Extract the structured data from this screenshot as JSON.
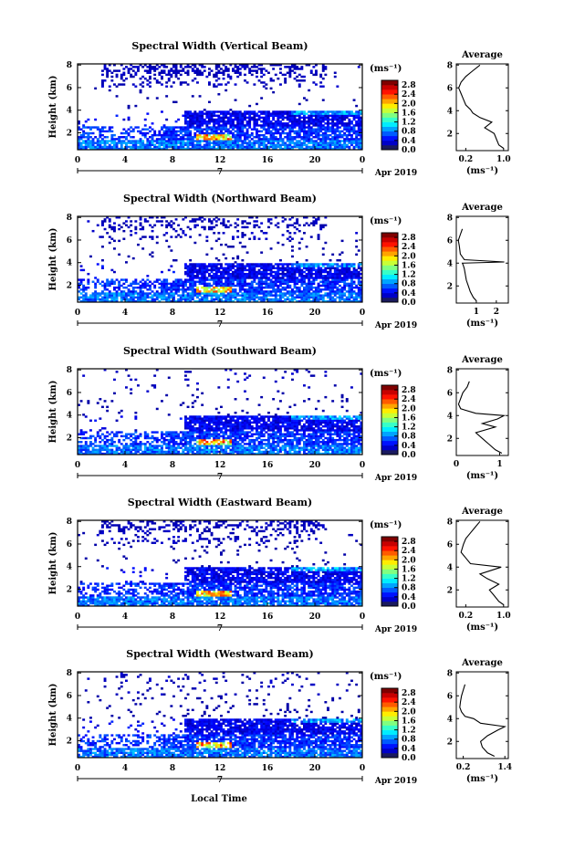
{
  "figure": {
    "xlabel": "Local Time",
    "date_label": "Apr 2019",
    "day_label": "7",
    "colorbar_unit": "(ms⁻¹)",
    "avg_xlabel": "(ms⁻¹)",
    "avg_title": "Average",
    "ylabel": "Height (km)"
  },
  "chart_data": [
    {
      "type": "heatmap",
      "title": "Spectral Width (Vertical Beam)",
      "xlabel": "Local Time",
      "ylabel": "Height (km)",
      "x_ticks": [
        "0",
        "4",
        "8",
        "12",
        "16",
        "20",
        "0"
      ],
      "y_ticks": [
        "2",
        "4",
        "6",
        "8"
      ],
      "ylim": [
        0.5,
        8.1
      ],
      "xlim": [
        0,
        24
      ],
      "colorbar_ticks": [
        "0.0",
        "0.4",
        "0.8",
        "1.2",
        "1.6",
        "2.0",
        "2.4",
        "2.8"
      ],
      "colorbar_range": [
        0.0,
        3.0
      ],
      "average_profile": {
        "title": "Average",
        "x_ticks": [
          "0.2",
          "1.0"
        ],
        "xlim": [
          0.0,
          1.1
        ],
        "heights": [
          0.7,
          1.0,
          1.5,
          2.0,
          2.5,
          3.0,
          3.4,
          3.8,
          4.1,
          4.5,
          5.0,
          5.5,
          6.0,
          6.5,
          7.0,
          7.5,
          8.0
        ],
        "values": [
          1.0,
          0.9,
          0.85,
          0.8,
          0.6,
          0.75,
          0.5,
          0.35,
          0.3,
          0.2,
          0.15,
          0.1,
          0.05,
          0.1,
          0.2,
          0.35,
          0.5
        ]
      }
    },
    {
      "type": "heatmap",
      "title": "Spectral Width (Northward Beam)",
      "xlabel": "Local Time",
      "ylabel": "Height (km)",
      "x_ticks": [
        "0",
        "4",
        "8",
        "12",
        "16",
        "20",
        "0"
      ],
      "y_ticks": [
        "2",
        "4",
        "6",
        "8"
      ],
      "ylim": [
        0.5,
        8.1
      ],
      "xlim": [
        0,
        24
      ],
      "colorbar_ticks": [
        "0.0",
        "0.4",
        "0.8",
        "1.2",
        "1.6",
        "2.0",
        "2.4",
        "2.8"
      ],
      "colorbar_range": [
        0.0,
        3.0
      ],
      "average_profile": {
        "title": "Average",
        "x_ticks": [
          "1",
          "2"
        ],
        "xlim": [
          0.0,
          2.6
        ],
        "heights": [
          0.7,
          1.0,
          1.5,
          2.0,
          2.5,
          3.0,
          3.5,
          3.8,
          4.0,
          4.1,
          4.3,
          4.8,
          5.5,
          6.0,
          6.5,
          7.0
        ],
        "values": [
          1.0,
          0.85,
          0.7,
          0.6,
          0.5,
          0.45,
          0.4,
          0.35,
          0.3,
          2.4,
          0.4,
          0.2,
          0.15,
          0.1,
          0.2,
          0.3
        ]
      }
    },
    {
      "type": "heatmap",
      "title": "Spectral Width (Southward Beam)",
      "xlabel": "Local Time",
      "ylabel": "Height (km)",
      "x_ticks": [
        "0",
        "4",
        "8",
        "12",
        "16",
        "20",
        "0"
      ],
      "y_ticks": [
        "2",
        "4",
        "6",
        "8"
      ],
      "ylim": [
        0.5,
        8.1
      ],
      "xlim": [
        0,
        24
      ],
      "colorbar_ticks": [
        "0.0",
        "0.4",
        "0.8",
        "1.2",
        "1.6",
        "2.0",
        "2.4",
        "2.8"
      ],
      "colorbar_range": [
        0.0,
        3.0
      ],
      "average_profile": {
        "title": "Average",
        "x_ticks": [
          "0",
          "1"
        ],
        "xlim": [
          0.0,
          1.2
        ],
        "heights": [
          0.7,
          1.0,
          1.5,
          2.0,
          2.5,
          3.0,
          3.3,
          3.7,
          4.0,
          4.2,
          4.6,
          5.0,
          5.5,
          6.0,
          6.5,
          7.0
        ],
        "values": [
          1.05,
          0.9,
          0.75,
          0.6,
          0.45,
          0.9,
          0.6,
          0.95,
          1.1,
          0.45,
          0.1,
          0.05,
          0.1,
          0.15,
          0.25,
          0.3
        ]
      }
    },
    {
      "type": "heatmap",
      "title": "Spectral Width (Eastward Beam)",
      "xlabel": "Local Time",
      "ylabel": "Height (km)",
      "x_ticks": [
        "0",
        "4",
        "8",
        "12",
        "16",
        "20",
        "0"
      ],
      "y_ticks": [
        "2",
        "4",
        "6",
        "8"
      ],
      "ylim": [
        0.5,
        8.1
      ],
      "xlim": [
        0,
        24
      ],
      "colorbar_ticks": [
        "0.0",
        "0.4",
        "0.8",
        "1.2",
        "1.6",
        "2.0",
        "2.4",
        "2.8"
      ],
      "colorbar_range": [
        0.0,
        3.0
      ],
      "average_profile": {
        "title": "Average",
        "x_ticks": [
          "0.2",
          "1.0"
        ],
        "xlim": [
          0.0,
          1.1
        ],
        "heights": [
          0.7,
          1.0,
          1.5,
          2.0,
          2.5,
          3.0,
          3.4,
          3.8,
          4.0,
          4.3,
          4.8,
          5.3,
          6.0,
          6.5,
          7.0,
          7.5,
          8.0
        ],
        "values": [
          1.0,
          0.9,
          0.8,
          0.7,
          0.9,
          0.65,
          0.5,
          0.8,
          0.95,
          0.3,
          0.2,
          0.1,
          0.15,
          0.2,
          0.3,
          0.4,
          0.5
        ]
      }
    },
    {
      "type": "heatmap",
      "title": "Spectral Width (Westward Beam)",
      "xlabel": "Local Time",
      "ylabel": "Height (km)",
      "x_ticks": [
        "0",
        "4",
        "8",
        "12",
        "16",
        "20",
        "0"
      ],
      "y_ticks": [
        "2",
        "4",
        "6",
        "8"
      ],
      "ylim": [
        0.5,
        8.1
      ],
      "xlim": [
        0,
        24
      ],
      "colorbar_ticks": [
        "0.0",
        "0.4",
        "0.8",
        "1.2",
        "1.6",
        "2.0",
        "2.4",
        "2.8"
      ],
      "colorbar_range": [
        0.0,
        3.0
      ],
      "average_profile": {
        "title": "Average",
        "x_ticks": [
          "0.2",
          "1.4"
        ],
        "xlim": [
          0.0,
          1.5
        ],
        "heights": [
          0.7,
          1.0,
          1.5,
          2.0,
          2.5,
          3.0,
          3.3,
          3.6,
          4.0,
          4.2,
          4.6,
          5.0,
          5.5,
          6.0,
          6.5,
          7.0
        ],
        "values": [
          1.1,
          0.9,
          0.75,
          0.7,
          0.9,
          1.2,
          1.4,
          0.7,
          0.5,
          0.25,
          0.15,
          0.1,
          0.12,
          0.15,
          0.2,
          0.25
        ]
      }
    }
  ]
}
